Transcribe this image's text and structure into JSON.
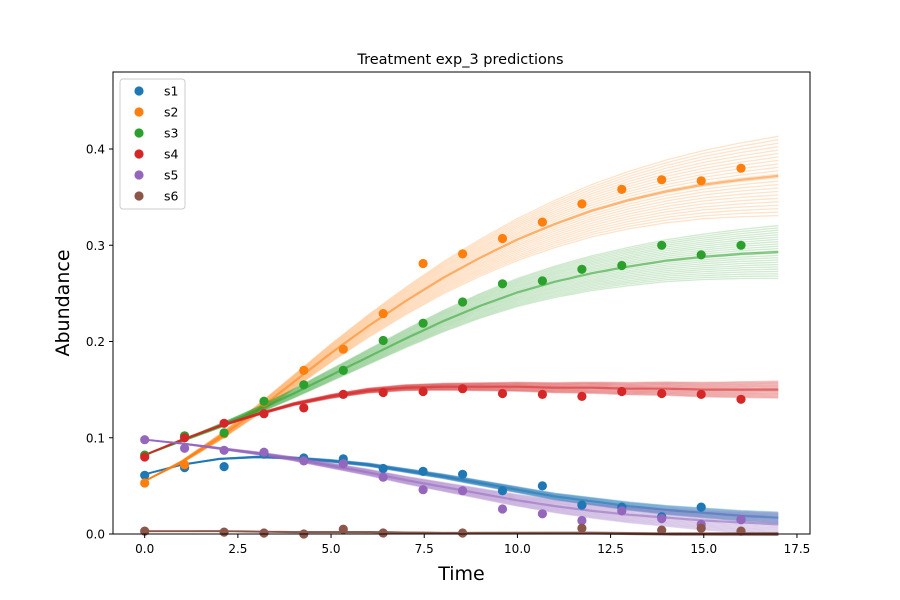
{
  "chart_data": {
    "type": "scatter",
    "title": "Treatment exp_3 predictions",
    "xlabel": "Time",
    "ylabel": "Abundance",
    "xlim": [
      -0.85,
      17.85
    ],
    "ylim": [
      0,
      0.48
    ],
    "xticks": [
      "0.0",
      "2.5",
      "5.0",
      "7.5",
      "10.0",
      "12.5",
      "15.0",
      "17.5"
    ],
    "yticks": [
      "0.0",
      "0.1",
      "0.2",
      "0.3",
      "0.4"
    ],
    "grid": false,
    "legend_position": "top-left",
    "prediction_range": [
      0,
      17
    ],
    "series": [
      {
        "name": "s1",
        "color": "#1f77b4",
        "x": [
          0,
          1.07,
          2.13,
          3.2,
          4.27,
          5.33,
          6.4,
          7.47,
          8.53,
          9.6,
          10.67,
          11.73,
          12.8,
          13.87,
          14.93,
          16
        ],
        "y": [
          0.061,
          0.069,
          0.07,
          0.083,
          0.079,
          0.078,
          0.068,
          0.065,
          0.062,
          0.045,
          0.05,
          0.03,
          0.028,
          0.018,
          0.028,
          0.015
        ],
        "curve": {
          "t": [
            0,
            1,
            2,
            3,
            4,
            5,
            6,
            7,
            8,
            9,
            10,
            11,
            12,
            13,
            14,
            15,
            16,
            17
          ],
          "y": [
            0.062,
            0.072,
            0.078,
            0.08,
            0.079,
            0.076,
            0.072,
            0.066,
            0.06,
            0.053,
            0.046,
            0.039,
            0.034,
            0.029,
            0.025,
            0.022,
            0.019,
            0.017
          ]
        }
      },
      {
        "name": "s2",
        "color": "#ff7f0e",
        "x": [
          0,
          1.07,
          2.13,
          3.2,
          4.27,
          5.33,
          6.4,
          7.47,
          8.53,
          9.6,
          10.67,
          11.73,
          12.8,
          13.87,
          14.93,
          16
        ],
        "y": [
          0.053,
          0.072,
          0.104,
          0.137,
          0.17,
          0.192,
          0.229,
          0.281,
          0.291,
          0.307,
          0.324,
          0.343,
          0.358,
          0.368,
          0.367,
          0.38
        ],
        "curve": {
          "t": [
            0,
            1,
            2,
            3,
            4,
            5,
            6,
            7,
            8,
            9,
            10,
            11,
            12,
            13,
            14,
            15,
            16,
            17
          ],
          "y": [
            0.055,
            0.075,
            0.1,
            0.128,
            0.158,
            0.188,
            0.216,
            0.242,
            0.266,
            0.287,
            0.306,
            0.322,
            0.336,
            0.347,
            0.356,
            0.363,
            0.368,
            0.372
          ]
        }
      },
      {
        "name": "s3",
        "color": "#2ca02c",
        "x": [
          0,
          1.07,
          2.13,
          3.2,
          4.27,
          5.33,
          6.4,
          7.47,
          8.53,
          9.6,
          10.67,
          11.73,
          12.8,
          13.87,
          14.93,
          16
        ],
        "y": [
          0.082,
          0.102,
          0.105,
          0.138,
          0.155,
          0.17,
          0.201,
          0.219,
          0.241,
          0.26,
          0.263,
          0.275,
          0.279,
          0.3,
          0.29,
          0.3
        ],
        "curve": {
          "t": [
            0,
            1,
            2,
            3,
            4,
            5,
            6,
            7,
            8,
            9,
            10,
            11,
            12,
            13,
            14,
            15,
            16,
            17
          ],
          "y": [
            0.082,
            0.097,
            0.112,
            0.128,
            0.146,
            0.165,
            0.184,
            0.203,
            0.221,
            0.237,
            0.251,
            0.262,
            0.271,
            0.278,
            0.284,
            0.288,
            0.291,
            0.293
          ]
        }
      },
      {
        "name": "s4",
        "color": "#d62728",
        "x": [
          0,
          1.07,
          2.13,
          3.2,
          4.27,
          5.33,
          6.4,
          7.47,
          8.53,
          9.6,
          10.67,
          11.73,
          12.8,
          13.87,
          14.93,
          16
        ],
        "y": [
          0.08,
          0.1,
          0.115,
          0.125,
          0.131,
          0.145,
          0.147,
          0.148,
          0.151,
          0.146,
          0.145,
          0.143,
          0.148,
          0.146,
          0.145,
          0.14
        ],
        "curve": {
          "t": [
            0,
            1,
            2,
            3,
            4,
            5,
            6,
            7,
            8,
            9,
            10,
            11,
            12,
            13,
            14,
            15,
            16,
            17
          ],
          "y": [
            0.082,
            0.098,
            0.112,
            0.124,
            0.135,
            0.143,
            0.149,
            0.152,
            0.153,
            0.153,
            0.153,
            0.152,
            0.152,
            0.151,
            0.151,
            0.15,
            0.15,
            0.15
          ]
        }
      },
      {
        "name": "s5",
        "color": "#9467bd",
        "x": [
          0,
          1.07,
          2.13,
          3.2,
          4.27,
          5.33,
          6.4,
          7.47,
          8.53,
          9.6,
          10.67,
          11.73,
          12.8,
          13.87,
          14.93,
          16
        ],
        "y": [
          0.098,
          0.089,
          0.087,
          0.085,
          0.076,
          0.073,
          0.059,
          0.046,
          0.045,
          0.026,
          0.021,
          0.014,
          0.024,
          0.016,
          0.01,
          0.015
        ],
        "curve": {
          "t": [
            0,
            1,
            2,
            3,
            4,
            5,
            6,
            7,
            8,
            9,
            10,
            11,
            12,
            13,
            14,
            15,
            16,
            17
          ],
          "y": [
            0.098,
            0.094,
            0.089,
            0.084,
            0.078,
            0.071,
            0.064,
            0.056,
            0.049,
            0.042,
            0.035,
            0.029,
            0.024,
            0.02,
            0.017,
            0.014,
            0.012,
            0.01
          ]
        }
      },
      {
        "name": "s6",
        "color": "#8c564b",
        "x": [
          0,
          2.13,
          3.2,
          4.27,
          5.33,
          6.4,
          8.53,
          11.73,
          13.87,
          14.93,
          16
        ],
        "y": [
          0.003,
          0.002,
          0.001,
          0.0,
          0.005,
          0.001,
          0.001,
          0.006,
          0.004,
          0.006,
          0.003
        ],
        "curve": {
          "t": [
            0,
            2,
            4,
            6,
            8,
            10,
            12,
            14,
            17
          ],
          "y": [
            0.003,
            0.003,
            0.002,
            0.002,
            0.001,
            0.001,
            0.001,
            0.0,
            0.0
          ]
        }
      }
    ]
  }
}
